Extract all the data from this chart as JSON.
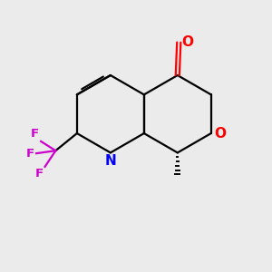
{
  "background_color": "#ebebeb",
  "bond_color": "#000000",
  "N_color": "#0000ff",
  "O_color": "#ff0000",
  "F_color": "#cc00cc",
  "figsize": [
    3.0,
    3.0
  ],
  "dpi": 100,
  "xlim": [
    0,
    10
  ],
  "ylim": [
    0,
    10
  ]
}
